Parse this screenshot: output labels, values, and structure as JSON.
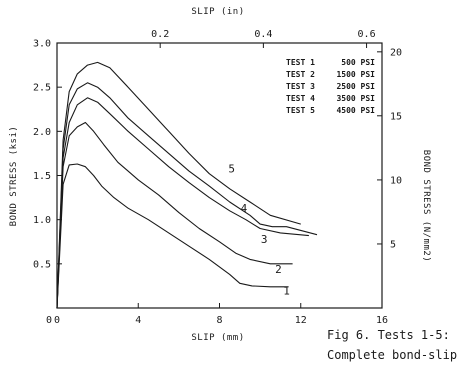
{
  "chart_data": {
    "type": "line",
    "xlabel_bottom": "SLIP (mm)",
    "xlabel_top": "SLIP (in)",
    "ylabel_left": "BOND STRESS (ksi)",
    "ylabel_right": "BOND STRESS (N/mm2)",
    "xlim": [
      0,
      16
    ],
    "ylim": [
      0,
      3.0
    ],
    "xticks": [
      "0",
      "4",
      "8",
      "12",
      "16"
    ],
    "yticks": [
      "0.5",
      "1.0",
      "1.5",
      "2.0",
      "2.5",
      "3.0"
    ],
    "top_ticks": [
      {
        "label": "0.2",
        "x_mm": 5.08
      },
      {
        "label": "0.4",
        "x_mm": 10.16
      },
      {
        "label": "0.6",
        "x_mm": 15.24
      }
    ],
    "right_ticks": [
      {
        "label": "5",
        "y_ksi": 0.725
      },
      {
        "label": "10",
        "y_ksi": 1.45
      },
      {
        "label": "15",
        "y_ksi": 2.176
      },
      {
        "label": "20",
        "y_ksi": 2.9
      }
    ],
    "legend": [
      {
        "test": "TEST 1",
        "value": "500 PSI"
      },
      {
        "test": "TEST 2",
        "value": "1500 PSI"
      },
      {
        "test": "TEST 3",
        "value": "2500 PSI"
      },
      {
        "test": "TEST 4",
        "value": "3500 PSI"
      },
      {
        "test": "TEST 5",
        "value": "4500 PSI"
      }
    ],
    "series": [
      {
        "label": "1",
        "label_pos": [
          11.3,
          0.2
        ],
        "x": [
          0,
          0.3,
          0.6,
          1.0,
          1.4,
          1.8,
          2.2,
          2.8,
          3.5,
          4.5,
          5.5,
          6.5,
          7.5,
          8.5,
          9.0,
          9.6,
          10.5,
          11.4
        ],
        "y": [
          0.0,
          1.4,
          1.62,
          1.63,
          1.6,
          1.5,
          1.38,
          1.25,
          1.13,
          1.0,
          0.85,
          0.7,
          0.55,
          0.38,
          0.28,
          0.25,
          0.24,
          0.24
        ]
      },
      {
        "label": "2",
        "label_pos": [
          10.9,
          0.44
        ],
        "x": [
          0,
          0.3,
          0.6,
          1.0,
          1.4,
          1.8,
          2.3,
          3.0,
          4.0,
          5.0,
          6.0,
          7.0,
          8.0,
          8.8,
          9.5,
          10.5,
          11.6
        ],
        "y": [
          0.0,
          1.6,
          1.95,
          2.05,
          2.1,
          2.0,
          1.85,
          1.65,
          1.45,
          1.28,
          1.08,
          0.9,
          0.75,
          0.62,
          0.55,
          0.5,
          0.5
        ]
      },
      {
        "label": "3",
        "label_pos": [
          10.2,
          0.78
        ],
        "x": [
          0,
          0.3,
          0.6,
          1.0,
          1.5,
          2.0,
          2.6,
          3.5,
          4.5,
          5.5,
          6.5,
          7.5,
          8.5,
          9.3,
          10.0,
          11.0,
          12.4
        ],
        "y": [
          0.0,
          1.7,
          2.1,
          2.3,
          2.38,
          2.33,
          2.2,
          2.0,
          1.8,
          1.6,
          1.42,
          1.25,
          1.1,
          1.0,
          0.9,
          0.85,
          0.82
        ]
      },
      {
        "label": "4",
        "label_pos": [
          9.2,
          1.13
        ],
        "x": [
          0,
          0.3,
          0.6,
          1.0,
          1.5,
          2.0,
          2.6,
          3.5,
          4.5,
          5.5,
          6.5,
          7.5,
          8.5,
          9.5,
          10.0,
          10.6,
          11.3,
          12.8
        ],
        "y": [
          0.0,
          1.8,
          2.3,
          2.48,
          2.55,
          2.5,
          2.38,
          2.15,
          1.95,
          1.75,
          1.55,
          1.38,
          1.2,
          1.05,
          0.95,
          0.92,
          0.92,
          0.83
        ]
      },
      {
        "label": "5",
        "label_pos": [
          8.6,
          1.58
        ],
        "x": [
          0,
          0.3,
          0.6,
          1.0,
          1.5,
          2.0,
          2.6,
          3.5,
          4.5,
          5.5,
          6.5,
          7.5,
          8.5,
          9.5,
          10.5,
          12.0
        ],
        "y": [
          0.0,
          1.9,
          2.45,
          2.65,
          2.75,
          2.78,
          2.72,
          2.5,
          2.25,
          2.0,
          1.75,
          1.52,
          1.35,
          1.2,
          1.05,
          0.95
        ]
      }
    ]
  },
  "caption": {
    "line1": "Fig 6. Tests 1-5:",
    "line2": "Complete bond-slip"
  }
}
